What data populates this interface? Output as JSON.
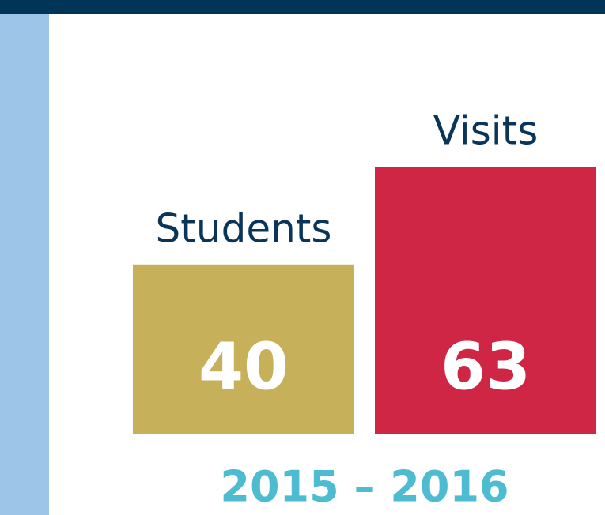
{
  "chart_data": {
    "type": "bar",
    "subtitle": "2015 – 2016",
    "categories": [
      "Students",
      "Visits"
    ],
    "values": [
      40,
      63
    ],
    "colors": [
      "#c6b05a",
      "#d02645"
    ]
  }
}
